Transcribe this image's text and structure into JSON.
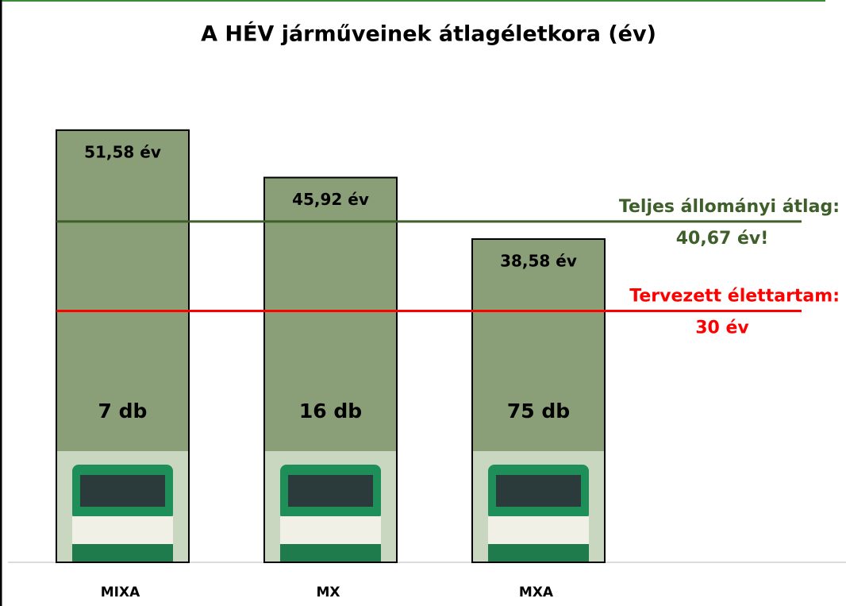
{
  "chart_data": {
    "type": "bar",
    "title": "A HÉV járműveinek átlagéletkora (év)",
    "categories": [
      "MIXA",
      "MX",
      "MXA"
    ],
    "values": [
      51.58,
      45.92,
      38.58
    ],
    "value_labels": [
      "51,58 év",
      "45,92 év",
      "38,58 év"
    ],
    "count_labels": [
      "7 db",
      "16 db",
      "75 db"
    ],
    "color": "#8a9e78",
    "ylim": [
      0,
      60
    ],
    "reference_lines": [
      {
        "name": "Teljes állományi átlag:",
        "value": 40.67,
        "value_label": "40,67 év!",
        "color": "#3e5f2a"
      },
      {
        "name": "Tervezett élettartam:",
        "value": 30,
        "value_label": "30 év",
        "color": "#ff0000"
      }
    ]
  }
}
